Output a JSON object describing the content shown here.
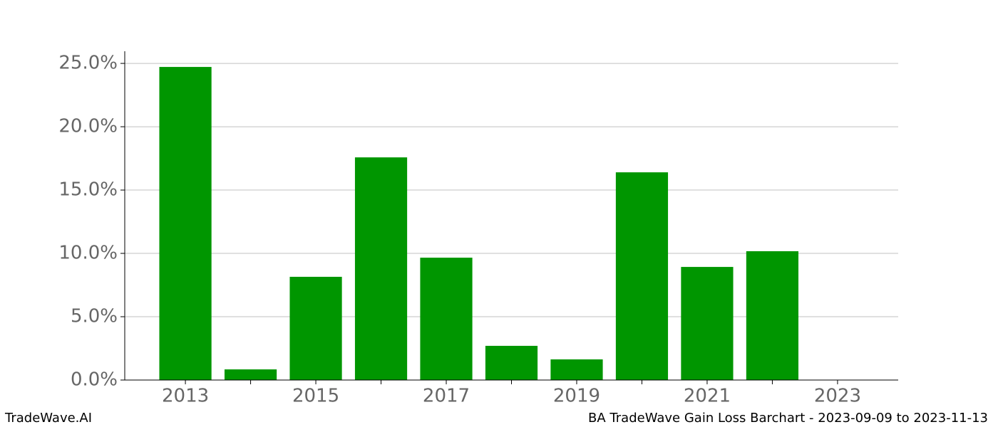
{
  "chart_data": {
    "type": "bar",
    "x": [
      2013,
      2014,
      2015,
      2016,
      2017,
      2018,
      2019,
      2020,
      2021,
      2022
    ],
    "values": [
      24.72,
      0.84,
      8.15,
      17.58,
      9.66,
      2.7,
      1.63,
      16.4,
      8.93,
      10.17
    ],
    "color": "#009600",
    "xlim": [
      2012.07,
      2023.93
    ],
    "xticks": [
      2013,
      2015,
      2017,
      2019,
      2021,
      2023
    ],
    "xminorticks": [
      2014,
      2016,
      2018,
      2020,
      2022
    ],
    "ylim": [
      0,
      25.96
    ],
    "yticks": [
      {
        "value": 0,
        "label": "0.0%"
      },
      {
        "value": 5,
        "label": "5.0%"
      },
      {
        "value": 10,
        "label": "10.0%"
      },
      {
        "value": 15,
        "label": "15.0%"
      },
      {
        "value": 20,
        "label": "20.0%"
      },
      {
        "value": 25,
        "label": "25.0%"
      }
    ],
    "grid": true,
    "footer_left": "TradeWave.AI",
    "footer_right": "BA TradeWave Gain Loss Barchart - 2023-09-09 to 2023-11-13"
  }
}
